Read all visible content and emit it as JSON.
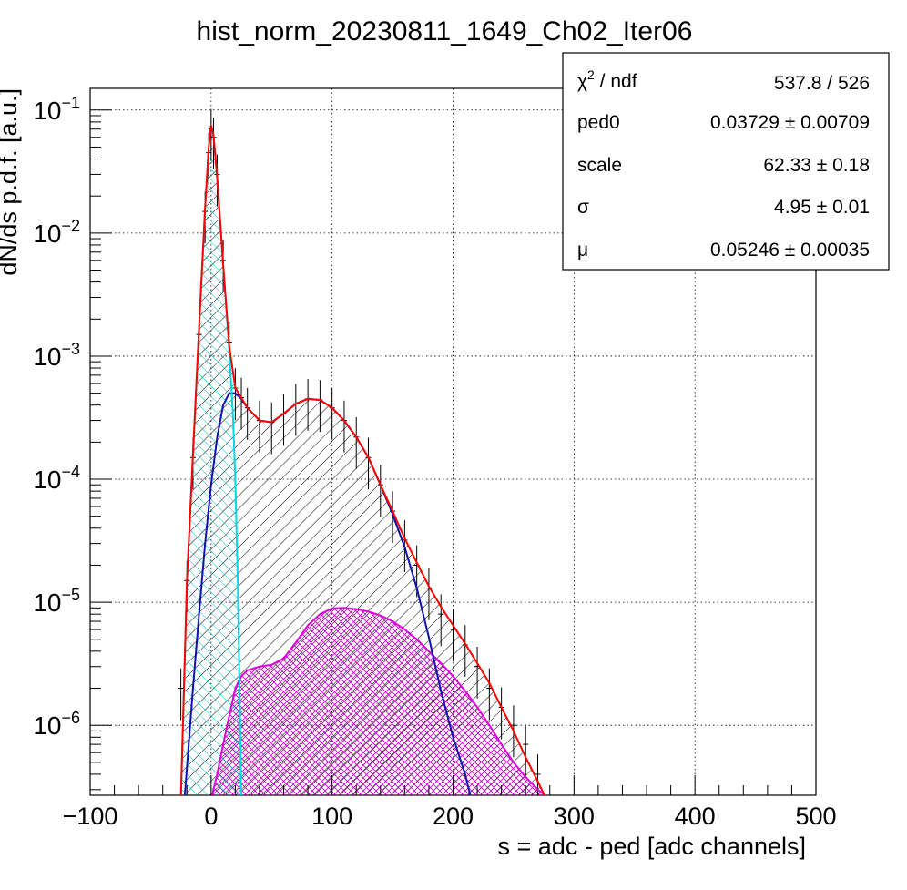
{
  "chart_data": {
    "type": "line",
    "title": "hist_norm_20230811_1649_Ch02_Iter06",
    "xlabel": "s = adc - ped [adc channels]",
    "ylabel": "dN/ds p.d.f. [a.u.]",
    "xlim": [
      -100,
      500
    ],
    "ylim": [
      2.7e-07,
      0.15
    ],
    "y_scale": "log",
    "grid": true,
    "x_ticks": [
      {
        "value": -100,
        "label": "−100"
      },
      {
        "value": 0,
        "label": "0"
      },
      {
        "value": 100,
        "label": "100"
      },
      {
        "value": 200,
        "label": "200"
      },
      {
        "value": 300,
        "label": "300"
      },
      {
        "value": 400,
        "label": "400"
      },
      {
        "value": 500,
        "label": "500"
      }
    ],
    "y_ticks": [
      {
        "value": 0.1,
        "base": "10",
        "exp": "−1"
      },
      {
        "value": 0.01,
        "base": "10",
        "exp": "−2"
      },
      {
        "value": 0.001,
        "base": "10",
        "exp": "−3"
      },
      {
        "value": 0.0001,
        "base": "10",
        "exp": "−4"
      },
      {
        "value": 1e-05,
        "base": "10",
        "exp": "−5"
      },
      {
        "value": 1e-06,
        "base": "10",
        "exp": "−6"
      }
    ],
    "stats_box": {
      "placement": "top-right",
      "rows": [
        {
          "label": "χ",
          "label_sup": "2",
          "label_rest": " / ndf",
          "value": "537.8 / 526"
        },
        {
          "label": "ped0",
          "label_sup": "",
          "label_rest": "",
          "value": "0.03729 ± 0.00709"
        },
        {
          "label": "scale",
          "label_sup": "",
          "label_rest": "",
          "value": "62.33 ± 0.18"
        },
        {
          "label": "σ",
          "label_sup": "",
          "label_rest": "",
          "value": "4.95 ± 0.01"
        },
        {
          "label": "μ",
          "label_sup": "",
          "label_rest": "",
          "value": "0.05246 ± 0.00035"
        }
      ]
    },
    "series": [
      {
        "color": "#000000",
        "style": "histogram-errorbars",
        "x": [
          -25,
          -20,
          -15,
          -10,
          -5,
          -2,
          0,
          2,
          5,
          10,
          15,
          20,
          25,
          30,
          40,
          50,
          60,
          70,
          80,
          90,
          100,
          110,
          120,
          130,
          140,
          150,
          160,
          170,
          180,
          190,
          200,
          210,
          220,
          230,
          240,
          250,
          260,
          270
        ],
        "y": [
          2e-06,
          1.5e-05,
          0.00015,
          0.0015,
          0.015,
          0.045,
          0.07,
          0.06,
          0.03,
          0.006,
          0.0013,
          0.00055,
          0.00046,
          0.00038,
          0.0003,
          0.00029,
          0.00034,
          0.00041,
          0.00045,
          0.00044,
          0.00038,
          0.0003,
          0.00022,
          0.00015,
          9e-05,
          5.5e-05,
          3.2e-05,
          2e-05,
          1.3e-05,
          8e-06,
          6e-06,
          4.5e-06,
          3e-06,
          2e-06,
          1.4e-06,
          1e-06,
          7e-07,
          4e-07
        ]
      },
      {
        "color": "#ff0000",
        "style": "fit-total",
        "x": [
          -25,
          -20,
          -15,
          -10,
          -5,
          -2,
          0,
          2,
          5,
          10,
          15,
          20,
          25,
          30,
          40,
          50,
          60,
          70,
          80,
          90,
          100,
          110,
          120,
          130,
          140,
          150,
          160,
          170,
          180,
          190,
          200,
          210,
          220,
          230,
          240,
          250,
          260,
          270,
          280
        ],
        "y": [
          2.5e-07,
          1.5e-05,
          0.00016,
          0.0017,
          0.016,
          0.05,
          0.075,
          0.062,
          0.028,
          0.0055,
          0.0012,
          0.00055,
          0.00046,
          0.00038,
          0.0003,
          0.00029,
          0.00034,
          0.00041,
          0.00045,
          0.00044,
          0.00038,
          0.0003,
          0.00022,
          0.00015,
          9e-05,
          5.5e-05,
          3.3e-05,
          2.1e-05,
          1.35e-05,
          9.2e-06,
          6.5e-06,
          4.6e-06,
          3.2e-06,
          2.2e-06,
          1.4e-06,
          9e-07,
          5.5e-07,
          3.5e-07,
          2.2e-07
        ]
      },
      {
        "color": "#00d8e8",
        "style": "component-pedestal",
        "x": [
          -25,
          -20,
          -15,
          -10,
          -5,
          -2,
          0,
          2,
          5,
          10,
          15,
          18,
          20,
          22,
          25
        ],
        "y": [
          2.5e-07,
          1.5e-05,
          0.00016,
          0.0017,
          0.016,
          0.05,
          0.075,
          0.062,
          0.028,
          0.0055,
          0.0011,
          0.00035,
          0.0001,
          1.5e-05,
          2.5e-07
        ]
      },
      {
        "color": "#1010b0",
        "style": "component-signal",
        "x": [
          -22,
          -15,
          -10,
          -5,
          0,
          5,
          10,
          15,
          20,
          25,
          30,
          40,
          50,
          60,
          70,
          80,
          90,
          100,
          110,
          120,
          130,
          140,
          150,
          160,
          170,
          180,
          190,
          200,
          210,
          215
        ],
        "y": [
          2.5e-07,
          2e-06,
          8e-06,
          3e-05,
          9e-05,
          0.00022,
          0.0004,
          0.0005,
          0.0005,
          0.00045,
          0.00038,
          0.0003,
          0.00029,
          0.00034,
          0.00041,
          0.00045,
          0.00044,
          0.00038,
          0.0003,
          0.00022,
          0.00015,
          9e-05,
          5.2e-05,
          2.8e-05,
          1.3e-05,
          5.2e-06,
          1.9e-06,
          8e-07,
          4e-07,
          2.5e-07
        ]
      },
      {
        "color": "#e000e0",
        "style": "component-multi",
        "x": [
          0,
          5,
          10,
          15,
          20,
          25,
          30,
          40,
          50,
          60,
          70,
          80,
          90,
          100,
          110,
          120,
          130,
          140,
          150,
          160,
          170,
          180,
          190,
          200,
          210,
          220,
          230,
          240,
          250,
          260,
          270,
          280
        ],
        "y": [
          2.5e-07,
          4e-07,
          7e-07,
          1.2e-06,
          2e-06,
          2.5e-06,
          2.8e-06,
          3e-06,
          3.1e-06,
          3.5e-06,
          4.7e-06,
          6.5e-06,
          8e-06,
          8.9e-06,
          9e-06,
          8.8e-06,
          8.4e-06,
          7.8e-06,
          7e-06,
          6e-06,
          5e-06,
          4e-06,
          3.2e-06,
          2.5e-06,
          1.9e-06,
          1.4e-06,
          1e-06,
          7e-07,
          5e-07,
          3.8e-07,
          3e-07,
          2.5e-07
        ]
      }
    ]
  }
}
